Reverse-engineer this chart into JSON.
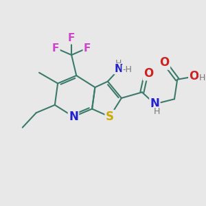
{
  "bg_color": "#e8e8e8",
  "bond_color": "#3a7a6a",
  "bond_lw": 1.5,
  "atom_colors": {
    "S": "#ccaa00",
    "N": "#2222cc",
    "O": "#cc2222",
    "F": "#cc44cc",
    "H": "#777777",
    "C": "#3a7a6a"
  },
  "figsize": [
    3.0,
    3.0
  ],
  "dpi": 100,
  "xlim": [
    0,
    10
  ],
  "ylim": [
    0,
    10
  ]
}
